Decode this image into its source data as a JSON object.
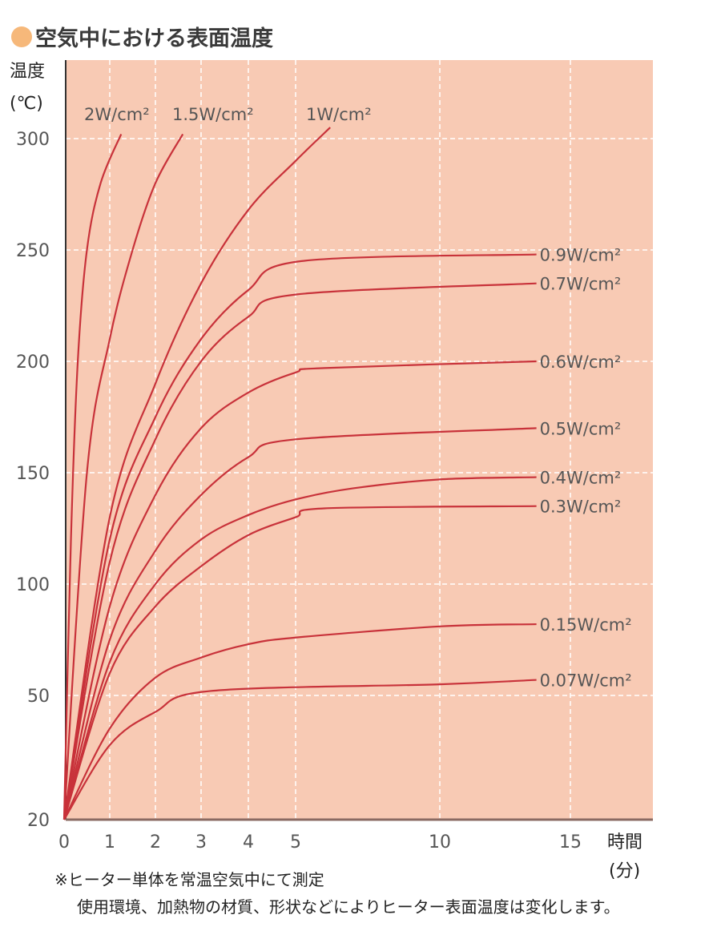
{
  "title": "空気中における表面温度",
  "colors": {
    "background": "#f8cab4",
    "curve": "#c8323a",
    "grid": "#ffffff",
    "title_dot": "#f6b87a"
  },
  "notes": [
    "※ヒーター単体を常温空気中にて測定",
    "使用環境、加熱物の材質、形状などによりヒーター表面温度は変化します。"
  ],
  "chart_data": {
    "type": "line",
    "title": "空気中における表面温度",
    "ylabel": [
      "温度",
      "(℃)"
    ],
    "xlabel": [
      "時間",
      "(分)"
    ],
    "xticks": [
      0,
      1,
      2,
      3,
      4,
      5,
      10,
      15
    ],
    "yticks": [
      20,
      50,
      100,
      150,
      200,
      250,
      300
    ],
    "xlim": [
      0,
      18
    ],
    "ylim": [
      20,
      320
    ],
    "grid": true,
    "series": [
      {
        "name": "2W/cm²",
        "points": [
          [
            0,
            20
          ],
          [
            0.15,
            120
          ],
          [
            0.3,
            200
          ],
          [
            0.5,
            250
          ],
          [
            0.8,
            280
          ],
          [
            1.25,
            302
          ]
        ]
      },
      {
        "name": "1.5W/cm²",
        "points": [
          [
            0,
            20
          ],
          [
            0.5,
            150
          ],
          [
            1,
            210
          ],
          [
            1.5,
            250
          ],
          [
            2,
            280
          ],
          [
            2.6,
            302
          ]
        ]
      },
      {
        "name": "1W/cm²",
        "points": [
          [
            0,
            20
          ],
          [
            1,
            130
          ],
          [
            2,
            190
          ],
          [
            3,
            235
          ],
          [
            4,
            268
          ],
          [
            5,
            290
          ],
          [
            6.2,
            305
          ]
        ]
      },
      {
        "name": "0.9W/cm²",
        "points": [
          [
            0,
            20
          ],
          [
            1,
            120
          ],
          [
            2,
            175
          ],
          [
            3,
            210
          ],
          [
            4,
            232
          ],
          [
            5.2,
            245
          ],
          [
            13.7,
            248
          ]
        ]
      },
      {
        "name": "0.7W/cm²",
        "points": [
          [
            0,
            20
          ],
          [
            1,
            110
          ],
          [
            2,
            165
          ],
          [
            3,
            200
          ],
          [
            4,
            220
          ],
          [
            5,
            230
          ],
          [
            13.7,
            235
          ]
        ]
      },
      {
        "name": "0.6W/cm²",
        "points": [
          [
            0,
            20
          ],
          [
            1,
            90
          ],
          [
            2,
            140
          ],
          [
            3,
            170
          ],
          [
            4,
            186
          ],
          [
            5,
            195
          ],
          [
            6,
            197
          ],
          [
            13.7,
            200
          ]
        ]
      },
      {
        "name": "0.5W/cm²",
        "points": [
          [
            0,
            20
          ],
          [
            1,
            75
          ],
          [
            2,
            115
          ],
          [
            3,
            140
          ],
          [
            4,
            157
          ],
          [
            5,
            165
          ],
          [
            13.7,
            170
          ]
        ]
      },
      {
        "name": "0.4W/cm²",
        "points": [
          [
            0,
            20
          ],
          [
            1,
            65
          ],
          [
            2,
            100
          ],
          [
            3,
            120
          ],
          [
            4,
            131
          ],
          [
            5,
            138
          ],
          [
            7,
            143
          ],
          [
            10,
            147
          ],
          [
            13.7,
            148
          ]
        ]
      },
      {
        "name": "0.3W/cm²",
        "points": [
          [
            0,
            20
          ],
          [
            1,
            60
          ],
          [
            2,
            90
          ],
          [
            3,
            108
          ],
          [
            4,
            122
          ],
          [
            5,
            130
          ],
          [
            6,
            134
          ],
          [
            13.7,
            135
          ]
        ]
      },
      {
        "name": "0.15W/cm²",
        "points": [
          [
            0,
            20
          ],
          [
            1,
            42
          ],
          [
            2,
            58
          ],
          [
            3,
            67
          ],
          [
            4,
            73
          ],
          [
            5,
            76
          ],
          [
            10,
            81
          ],
          [
            13.7,
            82
          ]
        ]
      },
      {
        "name": "0.07W/cm²",
        "points": [
          [
            0,
            20
          ],
          [
            1,
            38
          ],
          [
            2,
            46
          ],
          [
            3.2,
            52
          ],
          [
            10,
            55
          ],
          [
            13.7,
            57
          ]
        ]
      }
    ]
  }
}
